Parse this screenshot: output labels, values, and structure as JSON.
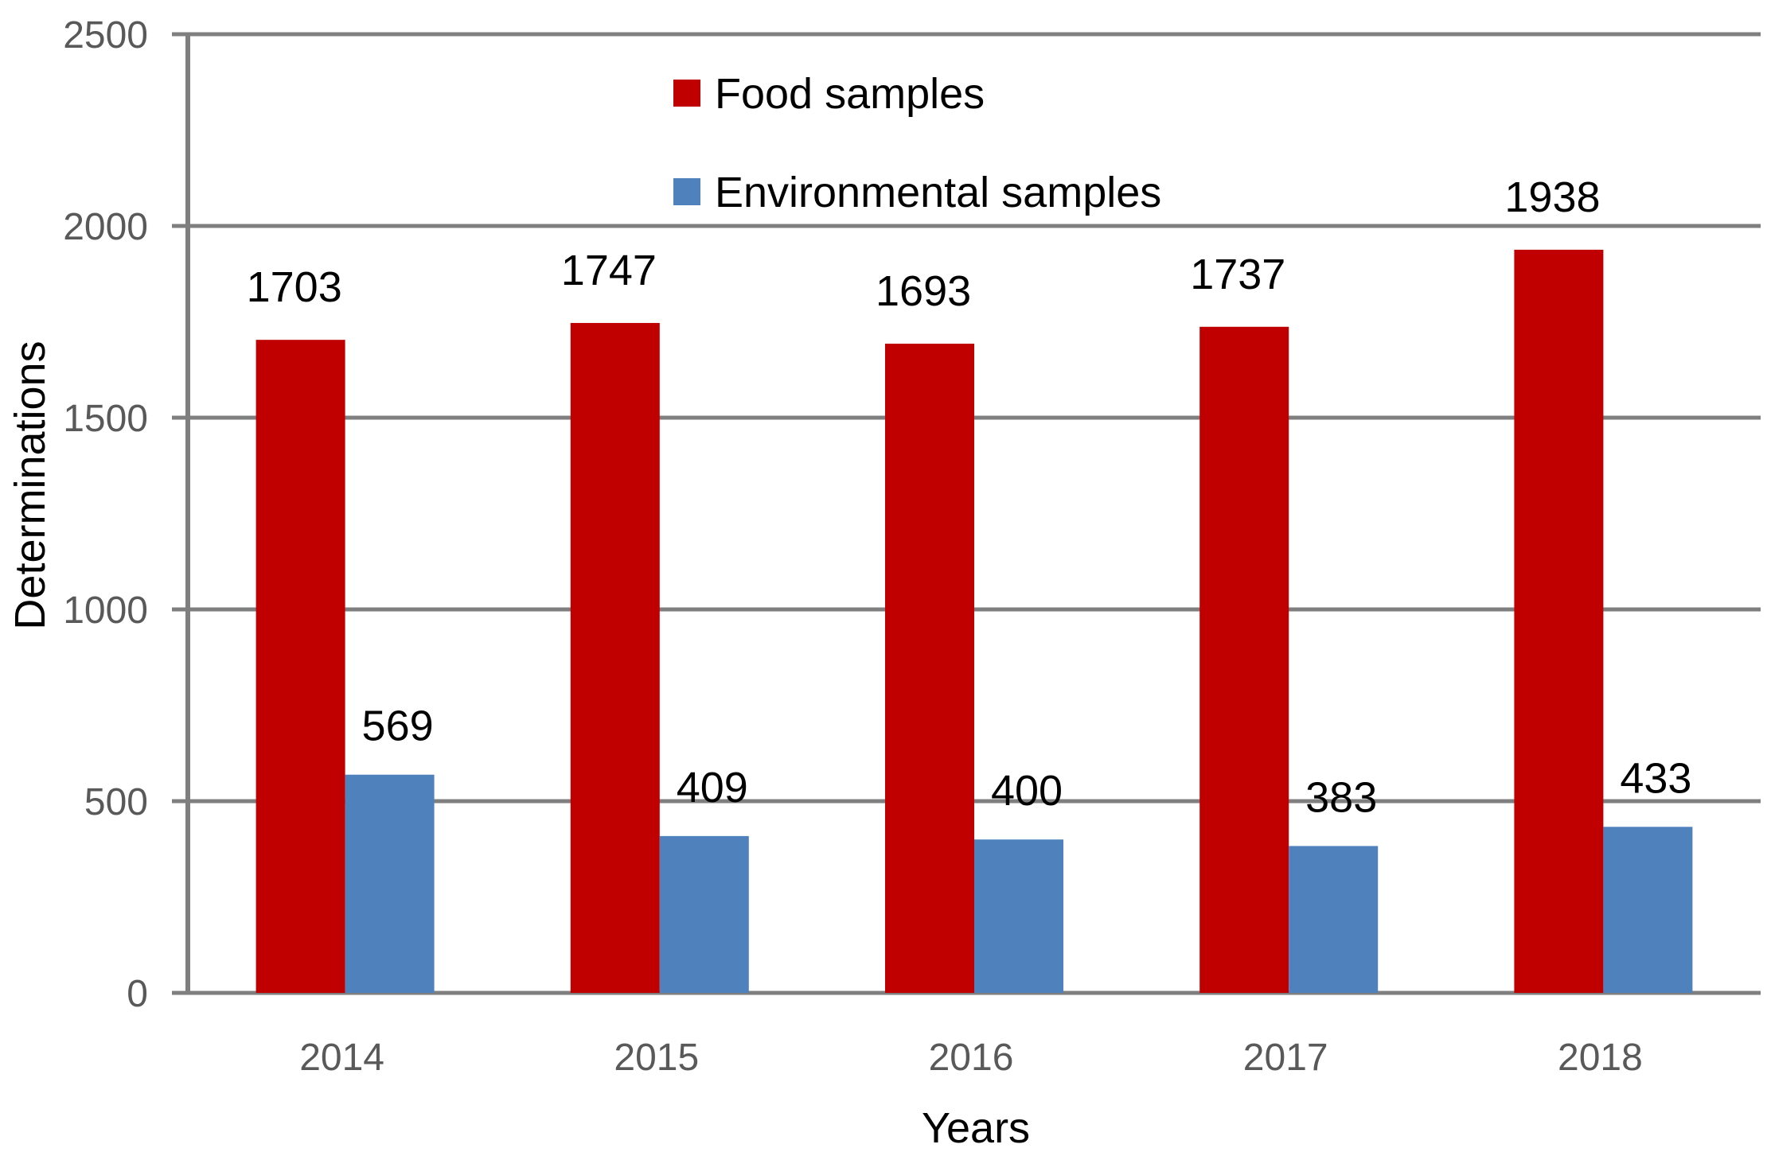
{
  "chart_data": {
    "type": "bar",
    "title": "",
    "xlabel": "Years",
    "ylabel": "Determinations",
    "categories": [
      "2014",
      "2015",
      "2016",
      "2017",
      "2018"
    ],
    "ylim": [
      0,
      2500
    ],
    "yticks": [
      0,
      500,
      1000,
      1500,
      2000,
      2500
    ],
    "grid": true,
    "legend_position": "top-center",
    "series": [
      {
        "name": "Food samples",
        "color": "#C00000",
        "values": [
          1703,
          1747,
          1693,
          1737,
          1938
        ]
      },
      {
        "name": "Environmental samples",
        "color": "#4F81BD",
        "values": [
          569,
          409,
          400,
          383,
          433
        ]
      }
    ],
    "gridline_color": "#7F7F7F",
    "tick_label_color": "#595959"
  }
}
